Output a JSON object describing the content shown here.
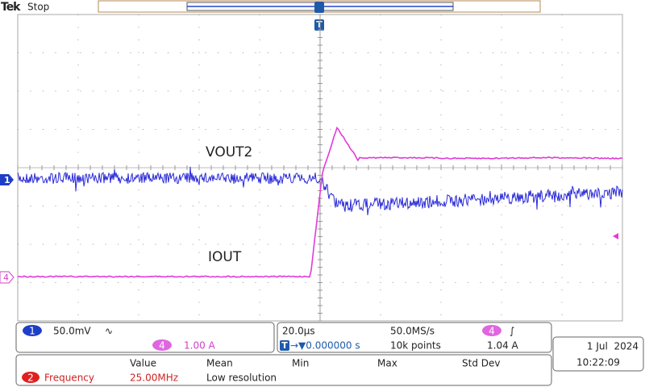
{
  "header": {
    "brand": "Tek",
    "status": "Stop",
    "trigger_marker": "T"
  },
  "scope": {
    "channel_markers": [
      "1",
      "4"
    ],
    "annotations": [
      "VOUT2",
      "IOUT"
    ]
  },
  "channels": {
    "ch1": {
      "number": "1",
      "scale": "50.0mV",
      "coupling": "∿"
    },
    "ch4": {
      "number": "4",
      "scale": "1.00 A"
    }
  },
  "timebase": {
    "scale": "20.0µs",
    "sample_rate": "50.0MS/s",
    "trigger_icon": "T",
    "trigger_position": "→▼0.000000 s",
    "record_length": "10k points",
    "trigger_channel": "4",
    "trigger_slope": "∫",
    "trigger_level": "1.04 A"
  },
  "datetime": {
    "date": "1 Jul  2024",
    "time": "10:22:09"
  },
  "measurements": {
    "headers": [
      "Value",
      "Mean",
      "Min",
      "Max",
      "Std Dev"
    ],
    "rows": [
      {
        "channel": "2",
        "name": "Frequency",
        "value": "25.00MHz",
        "mean": "Low resolution"
      }
    ]
  }
}
